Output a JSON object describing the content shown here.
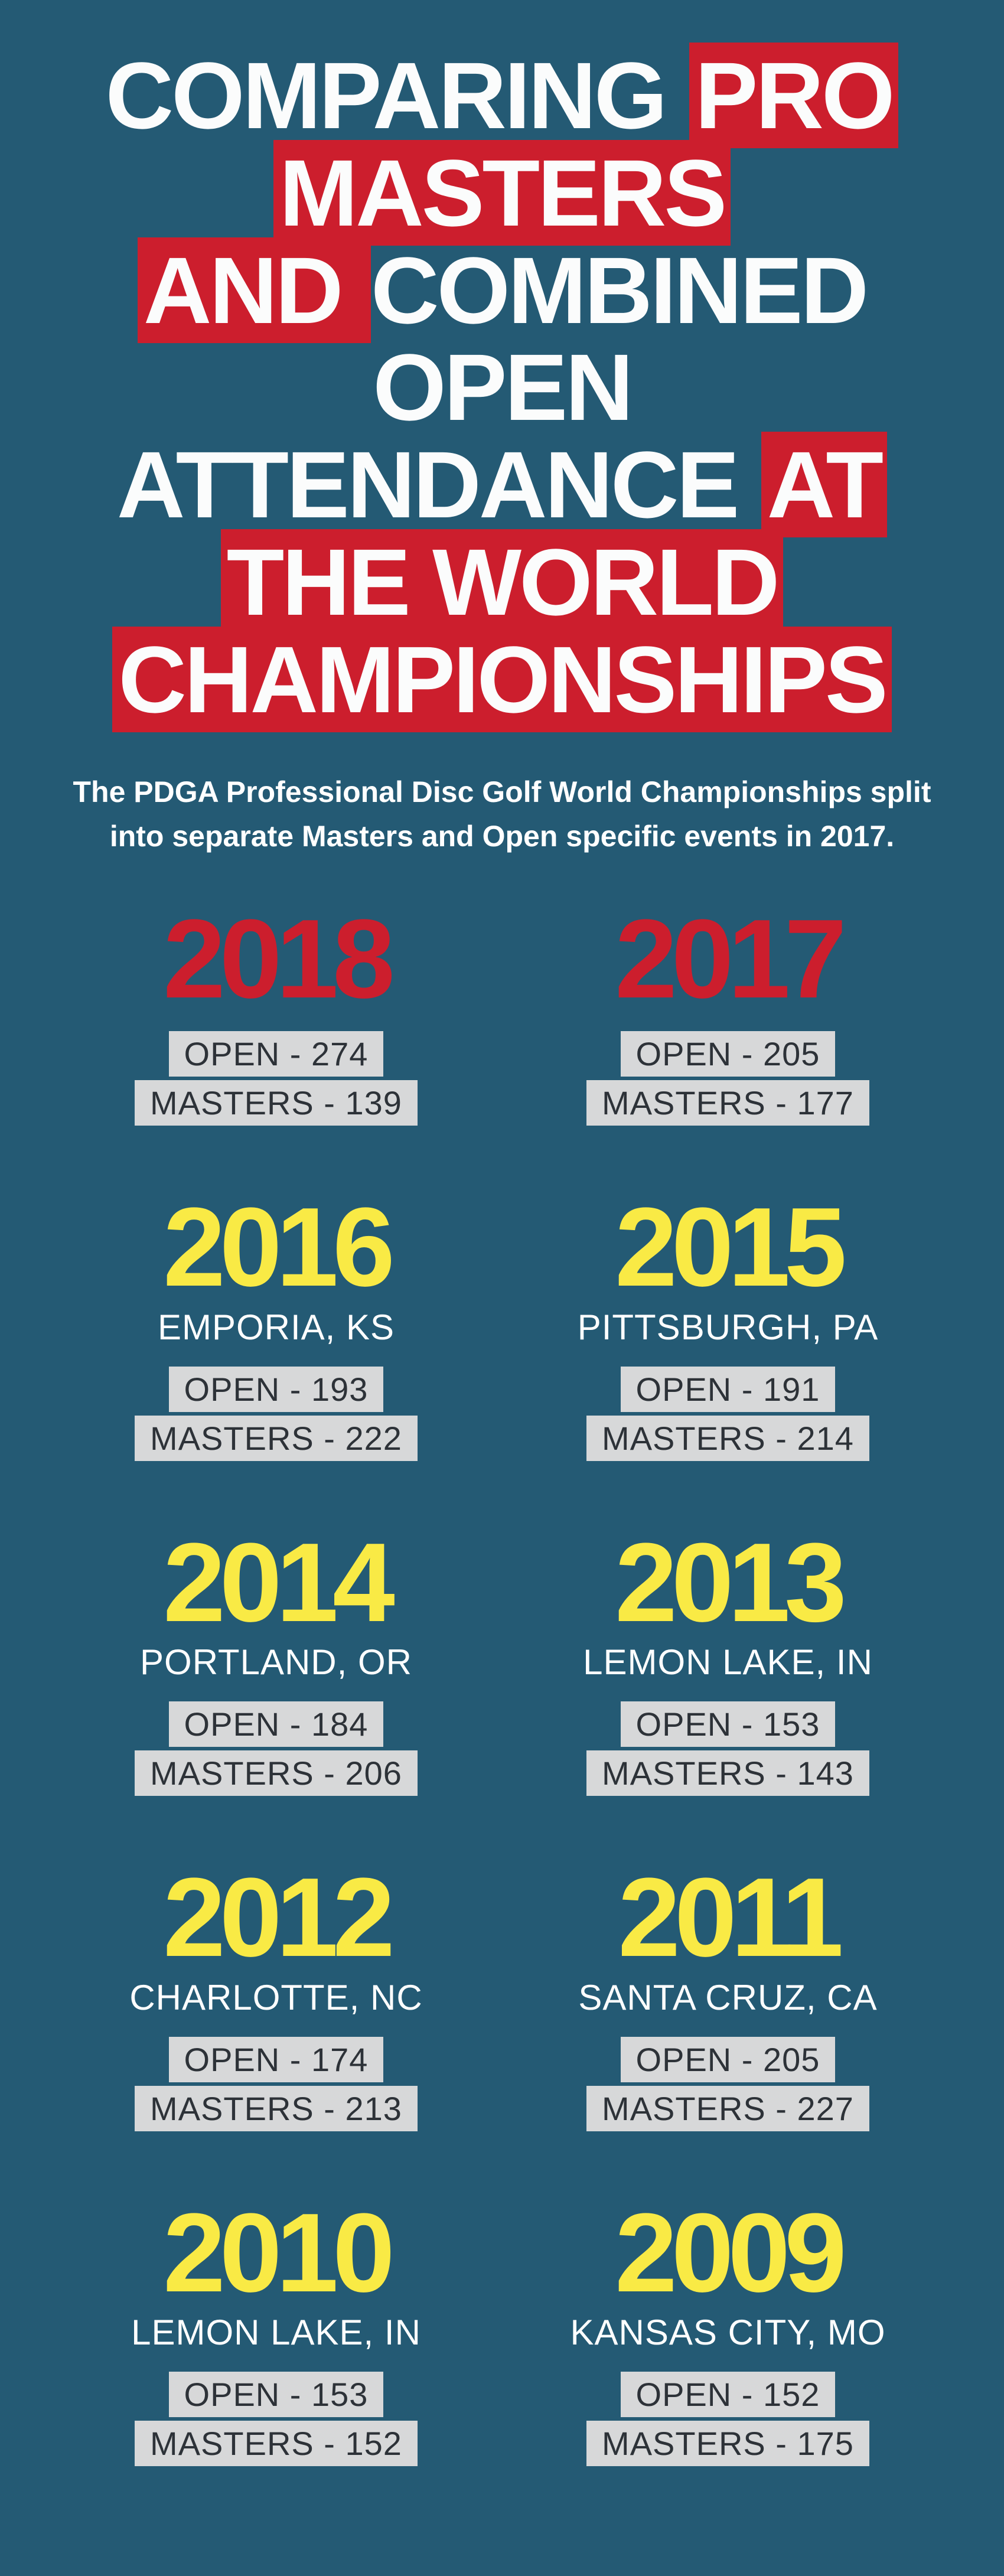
{
  "colors": {
    "bg": "#245a74",
    "title_text": "#fbfcfc",
    "highlight_bg": "#cc1e2d",
    "year_yellow": "#f9ea45",
    "year_red": "#cc1e2d",
    "stat_bg": "#d7d8d9",
    "stat_text": "#2d3238"
  },
  "title": {
    "line1_pre": "COMPARING ",
    "line1_hl": "PRO MASTERS",
    "line2_hl": "AND ",
    "line2_post": "COMBINED OPEN",
    "line3_pre": "ATTENDANCE ",
    "line3_hl": "AT THE WORLD",
    "line4_hl": "CHAMPIONSHIPS",
    "title_fontsize": 160,
    "title_weight": 900
  },
  "subhead": "The PDGA Professional Disc Golf World Championships split into separate Masters and Open specific events in 2017.",
  "years": [
    {
      "year": "2018",
      "color": "red",
      "location": "",
      "open": "OPEN - 274",
      "masters": "MASTERS - 139"
    },
    {
      "year": "2017",
      "color": "red",
      "location": "",
      "open": "OPEN - 205",
      "masters": "MASTERS - 177"
    },
    {
      "year": "2016",
      "color": "yellow",
      "location": "EMPORIA, KS",
      "open": "OPEN - 193",
      "masters": "MASTERS - 222"
    },
    {
      "year": "2015",
      "color": "yellow",
      "location": "PITTSBURGH, PA",
      "open": "OPEN - 191",
      "masters": "MASTERS - 214"
    },
    {
      "year": "2014",
      "color": "yellow",
      "location": "PORTLAND, OR",
      "open": "OPEN - 184",
      "masters": "MASTERS - 206"
    },
    {
      "year": "2013",
      "color": "yellow",
      "location": "LEMON LAKE, IN",
      "open": "OPEN - 153",
      "masters": "MASTERS - 143"
    },
    {
      "year": "2012",
      "color": "yellow",
      "location": "CHARLOTTE, NC",
      "open": "OPEN - 174",
      "masters": "MASTERS - 213"
    },
    {
      "year": "2011",
      "color": "yellow",
      "location": "SANTA CRUZ, CA",
      "open": "OPEN - 205",
      "masters": "MASTERS - 227"
    },
    {
      "year": "2010",
      "color": "yellow",
      "location": "LEMON LAKE, IN",
      "open": "OPEN - 153",
      "masters": "MASTERS - 152"
    },
    {
      "year": "2009",
      "color": "yellow",
      "location": "KANSAS CITY, MO",
      "open": "OPEN - 152",
      "masters": "MASTERS - 175"
    }
  ],
  "typography": {
    "year_fontsize": 190,
    "location_fontsize": 60,
    "stat_fontsize": 56,
    "subhead_fontsize": 50
  }
}
